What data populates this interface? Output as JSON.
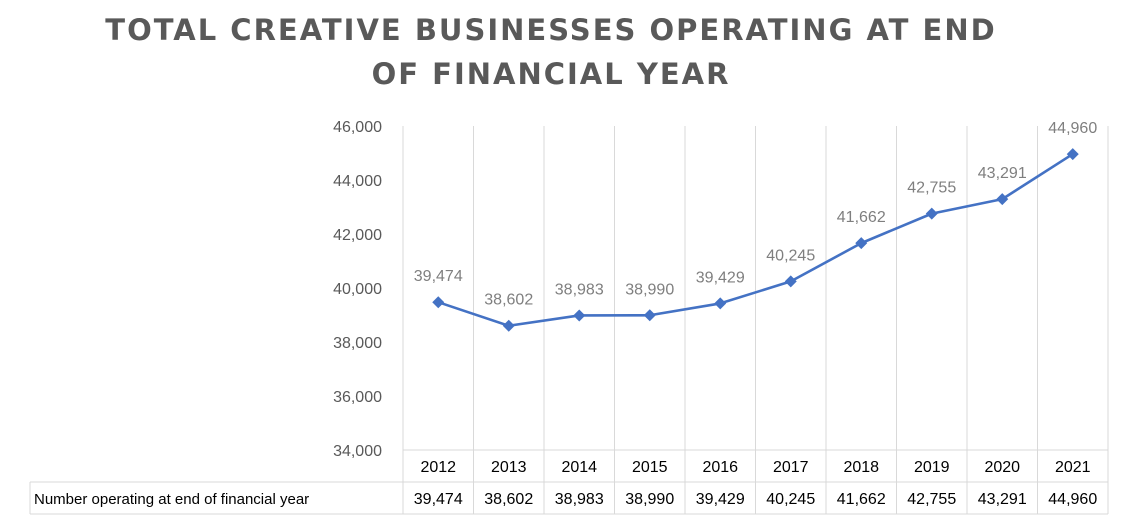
{
  "chart_data": {
    "type": "line",
    "title_line1": "TOTAL CREATIVE BUSINESSES OPERATING AT END",
    "title_line2": "OF FINANCIAL YEAR",
    "categories": [
      "2012",
      "2013",
      "2014",
      "2015",
      "2016",
      "2017",
      "2018",
      "2019",
      "2020",
      "2021"
    ],
    "series": [
      {
        "name": "Number operating at end of financial year",
        "values": [
          39474,
          38602,
          38983,
          38990,
          39429,
          40245,
          41662,
          42755,
          43291,
          44960
        ],
        "labels": [
          "39,474",
          "38,602",
          "38,983",
          "38,990",
          "39,429",
          "40,245",
          "41,662",
          "42,755",
          "43,291",
          "44,960"
        ]
      }
    ],
    "ylim": [
      34000,
      46000
    ],
    "yticks": [
      34000,
      36000,
      38000,
      40000,
      42000,
      44000,
      46000
    ],
    "ytick_labels": [
      "34,000",
      "36,000",
      "38,000",
      "40,000",
      "42,000",
      "44,000",
      "46,000"
    ],
    "grid": true,
    "data_table": true,
    "colors": {
      "line": "#4472c4",
      "grid": "#d9d9d9",
      "labels": "#7f7f7f"
    }
  }
}
